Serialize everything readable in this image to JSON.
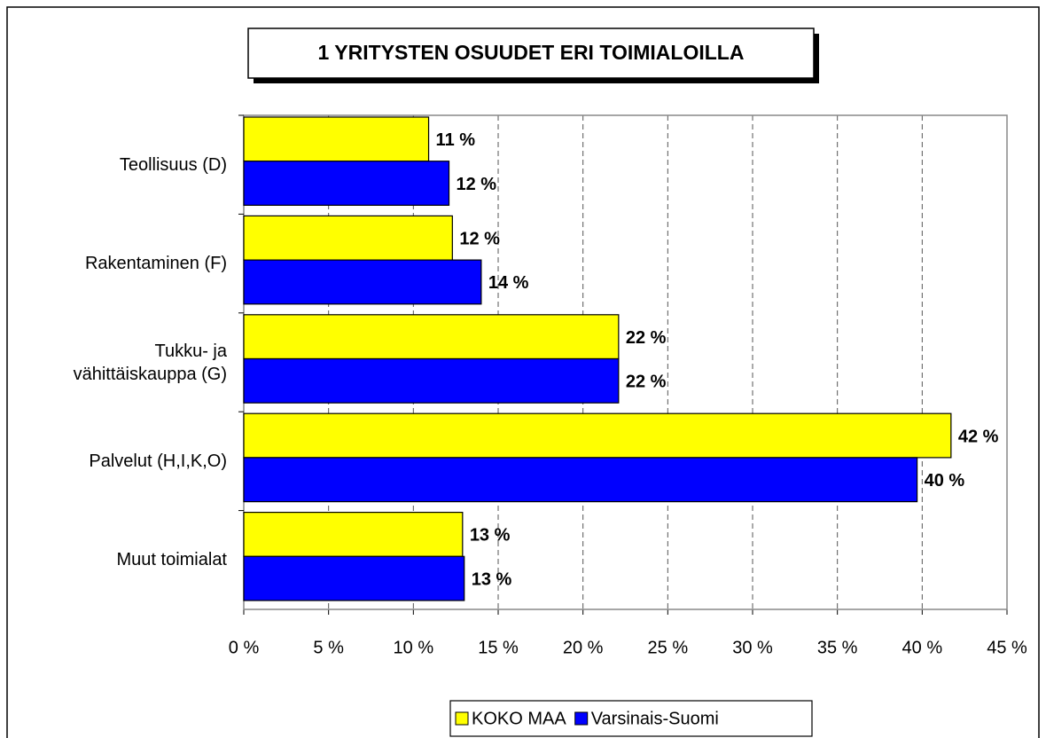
{
  "chart_data": {
    "type": "hbar",
    "title": "1 YRITYSTEN OSUUDET ERI TOIMIALOILLA",
    "categories": [
      "Teollisuus (D)",
      "Rakentaminen (F)",
      "Tukku- ja\nvähittäiskauppa (G)",
      "Palvelut (H,I,K,O)",
      "Muut toimialat"
    ],
    "series": [
      {
        "name": "KOKO MAA",
        "color": "#ffff00",
        "values": [
          10.9,
          12.3,
          22.1,
          41.7,
          12.9
        ],
        "value_labels": [
          "11 %",
          "12 %",
          "22 %",
          "42 %",
          "13 %"
        ]
      },
      {
        "name": "Varsinais-Suomi",
        "color": "#0000ff",
        "values": [
          12.1,
          14.0,
          22.1,
          39.7,
          13.0
        ],
        "value_labels": [
          "12 %",
          "14 %",
          "22 %",
          "40 %",
          "13 %"
        ]
      }
    ],
    "xlim": [
      0,
      45
    ],
    "xticks": [
      {
        "value": 0,
        "label": "0 %"
      },
      {
        "value": 5,
        "label": "5 %"
      },
      {
        "value": 10,
        "label": "10 %"
      },
      {
        "value": 15,
        "label": "15 %"
      },
      {
        "value": 20,
        "label": "20 %"
      },
      {
        "value": 25,
        "label": "25 %"
      },
      {
        "value": 30,
        "label": "30 %"
      },
      {
        "value": 35,
        "label": "35 %"
      },
      {
        "value": 40,
        "label": "40 %"
      },
      {
        "value": 45,
        "label": "45 %"
      }
    ],
    "grid": true,
    "legend": "bottom"
  }
}
